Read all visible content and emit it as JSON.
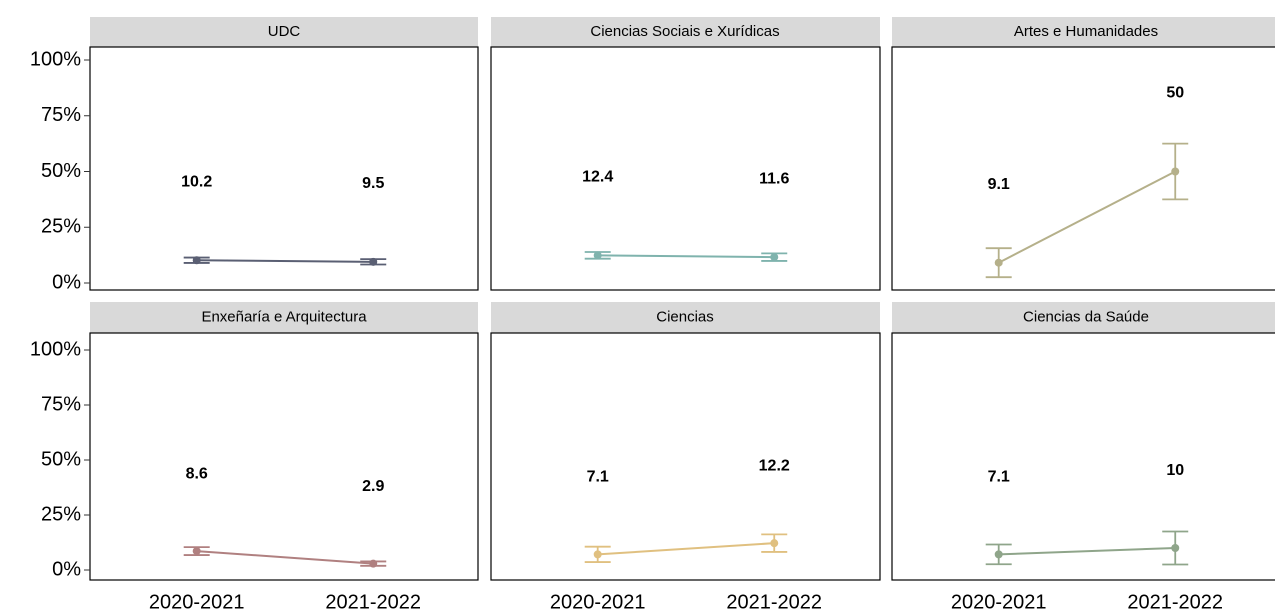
{
  "chart_data": {
    "type": "line",
    "categories": [
      "2020-2021",
      "2021-2022"
    ],
    "ylim": [
      0,
      100
    ],
    "yticks": [
      {
        "value": 0,
        "label": "0%"
      },
      {
        "value": 25,
        "label": "25%"
      },
      {
        "value": 50,
        "label": "50%"
      },
      {
        "value": 75,
        "label": "75%"
      },
      {
        "value": 100,
        "label": "100%"
      }
    ],
    "panels": [
      {
        "title": "UDC",
        "color": "#5a5f73",
        "values": [
          10.2,
          9.5
        ],
        "errors": [
          1.2,
          1.2
        ]
      },
      {
        "title": "Ciencias Sociais e Xurídicas",
        "color": "#7fb3ad",
        "values": [
          12.4,
          11.6
        ],
        "errors": [
          1.5,
          1.7
        ]
      },
      {
        "title": "Artes e Humanidades",
        "color": "#b5b08a",
        "values": [
          9.1,
          50
        ],
        "errors": [
          6.5,
          12.5
        ]
      },
      {
        "title": "Enxeñaría e Arquitectura",
        "color": "#b08080",
        "values": [
          8.6,
          2.9
        ],
        "errors": [
          1.8,
          1.0
        ]
      },
      {
        "title": "Ciencias",
        "color": "#e0c080",
        "values": [
          7.1,
          12.2
        ],
        "errors": [
          3.5,
          4.0
        ]
      },
      {
        "title": "Ciencias da Saúde",
        "color": "#8fa58a",
        "values": [
          7.1,
          10
        ],
        "errors": [
          4.5,
          7.5
        ]
      }
    ]
  }
}
